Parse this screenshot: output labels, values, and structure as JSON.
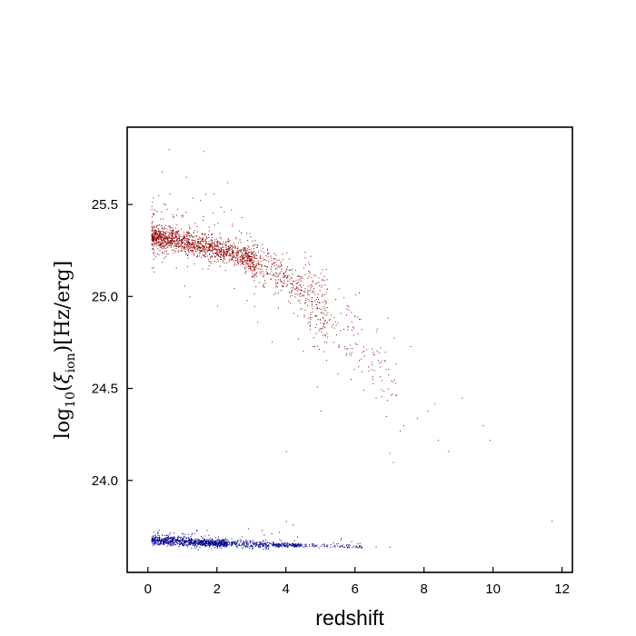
{
  "chart_data": {
    "type": "scatter",
    "title": "",
    "xlabel": "redshift",
    "ylabel": "log10(ξion)[Hz/erg]",
    "ylabel_parts": {
      "func": "log",
      "func_sub": "10",
      "open": "(",
      "sym": "ξ",
      "sym_sub": "ion",
      "close": ")",
      "units": "[Hz/erg]"
    },
    "xlim": [
      -0.6,
      12.3
    ],
    "ylim": [
      23.5,
      25.92
    ],
    "x_ticks": [
      0,
      2,
      4,
      6,
      8,
      10,
      12
    ],
    "x_tick_labels": [
      "0",
      "2",
      "4",
      "6",
      "8",
      "10",
      "12"
    ],
    "y_ticks": [
      24.0,
      24.5,
      25.0,
      25.5
    ],
    "y_tick_labels": [
      "24.0",
      "24.5",
      "25.0",
      "25.5"
    ],
    "grid": false,
    "legend": "none",
    "series": [
      {
        "color": "#8b0000",
        "trend": [
          [
            0.0,
            25.33
          ],
          [
            1.0,
            25.3
          ],
          [
            2.0,
            25.26
          ],
          [
            3.0,
            25.2
          ],
          [
            4.0,
            25.1
          ],
          [
            5.0,
            24.95
          ],
          [
            6.0,
            24.78
          ],
          [
            7.0,
            24.6
          ],
          [
            8.0,
            24.4
          ],
          [
            9.0,
            24.3
          ],
          [
            10.0,
            24.2
          ]
        ],
        "outliers": [
          [
            0.6,
            25.8
          ],
          [
            1.6,
            25.79
          ],
          [
            1.1,
            25.65
          ],
          [
            0.4,
            25.68
          ],
          [
            2.3,
            25.62
          ],
          [
            0.3,
            25.55
          ],
          [
            1.9,
            25.56
          ],
          [
            0.5,
            25.5
          ],
          [
            2.0,
            24.95
          ],
          [
            1.2,
            25.0
          ],
          [
            5.7,
            24.73
          ],
          [
            6.2,
            24.7
          ],
          [
            7.6,
            24.73
          ],
          [
            8.1,
            24.38
          ],
          [
            7.8,
            24.34
          ],
          [
            7.3,
            24.27
          ],
          [
            8.4,
            24.22
          ],
          [
            8.7,
            24.16
          ],
          [
            9.1,
            24.45
          ],
          [
            8.3,
            24.42
          ],
          [
            9.7,
            24.3
          ],
          [
            9.9,
            24.22
          ],
          [
            7.0,
            24.15
          ],
          [
            7.1,
            24.1
          ],
          [
            7.4,
            24.3
          ],
          [
            5.0,
            24.38
          ],
          [
            4.9,
            24.51
          ],
          [
            5.5,
            24.58
          ],
          [
            6.6,
            24.45
          ],
          [
            6.9,
            24.35
          ],
          [
            4.0,
            24.16
          ]
        ]
      },
      {
        "color": "#00008b",
        "trend": [
          [
            0.0,
            23.68
          ],
          [
            1.0,
            23.67
          ],
          [
            2.0,
            23.66
          ],
          [
            3.0,
            23.655
          ],
          [
            4.0,
            23.65
          ],
          [
            5.0,
            23.648
          ],
          [
            6.0,
            23.645
          ],
          [
            7.0,
            23.64
          ]
        ],
        "outliers": [
          [
            4.0,
            23.78
          ],
          [
            4.2,
            23.76
          ],
          [
            2.9,
            23.74
          ],
          [
            3.3,
            23.73
          ],
          [
            3.8,
            23.72
          ],
          [
            1.7,
            23.73
          ],
          [
            11.7,
            23.78
          ],
          [
            6.6,
            23.64
          ],
          [
            7.0,
            23.64
          ],
          [
            5.8,
            23.645
          ]
        ]
      }
    ]
  }
}
